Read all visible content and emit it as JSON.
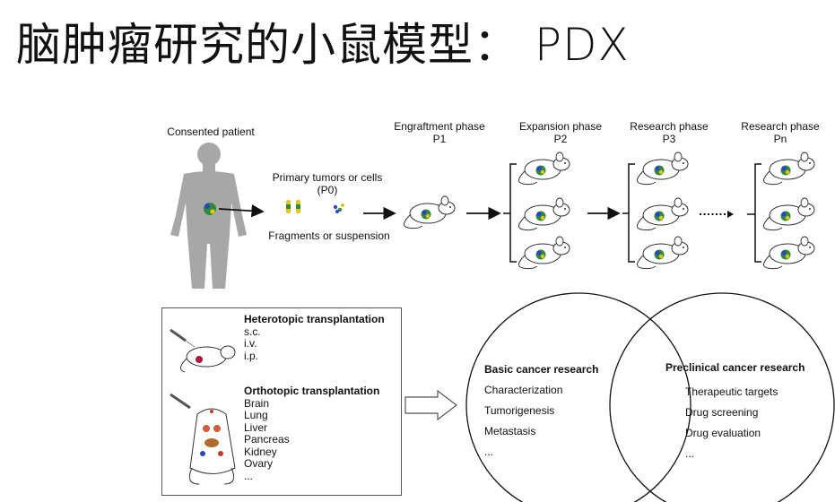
{
  "title": "脑肿瘤研究的小鼠模型： PDX",
  "patient_label": "Consented patient",
  "primary": {
    "line1": "Primary tumors or cells",
    "line2": "(P0)",
    "caption": "Fragments or suspension"
  },
  "phases": [
    {
      "name": "Engraftment phase",
      "code": "P1"
    },
    {
      "name": "Expansion phase",
      "code": "P2"
    },
    {
      "name": "Research phase",
      "code": "P3"
    },
    {
      "name": "Research phase",
      "code": "Pn"
    }
  ],
  "transplant": {
    "hetero_title": "Heterotopic transplantation",
    "hetero_items": [
      "s.c.",
      "i.v.",
      "i.p."
    ],
    "ortho_title": "Orthotopic transplantation",
    "ortho_items": [
      "Brain",
      "Lung",
      "Liver",
      "Pancreas",
      "Kidney",
      "Ovary",
      "..."
    ]
  },
  "venn": {
    "left_title": "Basic cancer research",
    "left_items": [
      "Characterization",
      "Tumorigenesis",
      "Metastasis",
      "..."
    ],
    "right_title": "Preclinical cancer research",
    "right_items": [
      "Therapeutic targets",
      "Drug screening",
      "Drug evaluation",
      "..."
    ]
  }
}
